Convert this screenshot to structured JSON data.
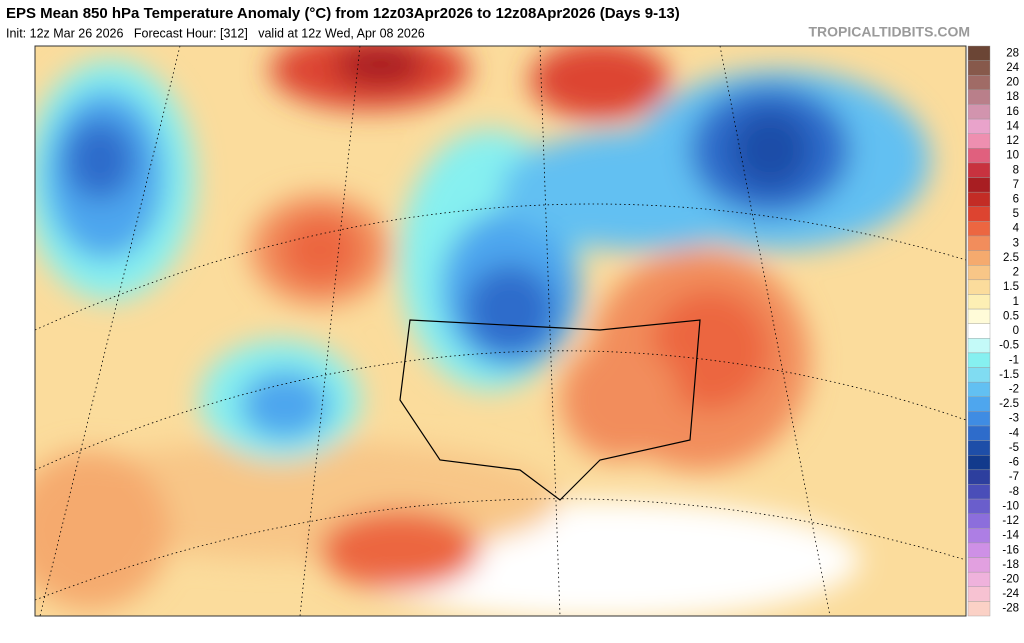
{
  "header": {
    "title": "EPS Mean 850 hPa Temperature Anomaly (°C) from 12z03Apr2026 to 12z08Apr2026 (Days 9-13)",
    "subtitle": "Init: 12z Mar 26 2026   Forecast Hour: [312]   valid at 12z Wed, Apr 08 2026",
    "source": "TROPICALTIDBITS.COM"
  },
  "legend": {
    "entries": [
      {
        "label": 28,
        "color": "#6b4535"
      },
      {
        "label": 24,
        "color": "#87594b"
      },
      {
        "label": 20,
        "color": "#a06b66"
      },
      {
        "label": 18,
        "color": "#b97f8a"
      },
      {
        "label": 16,
        "color": "#d294ae"
      },
      {
        "label": 14,
        "color": "#e9a3cb"
      },
      {
        "label": 12,
        "color": "#ee8fb0"
      },
      {
        "label": 10,
        "color": "#e0607e"
      },
      {
        "label": 8,
        "color": "#c8323f"
      },
      {
        "label": 7,
        "color": "#a81e22"
      },
      {
        "label": 6,
        "color": "#c32c25"
      },
      {
        "label": 5,
        "color": "#dd4430"
      },
      {
        "label": 4,
        "color": "#ec6641"
      },
      {
        "label": 3,
        "color": "#f28d5c"
      },
      {
        "label": 2.5,
        "color": "#f5aa6e"
      },
      {
        "label": 2,
        "color": "#f8c687"
      },
      {
        "label": 1.5,
        "color": "#fbdc9c"
      },
      {
        "label": 1,
        "color": "#fdefb4"
      },
      {
        "label": 0.5,
        "color": "#fffbd8"
      },
      {
        "label": 0,
        "color": "#ffffff"
      },
      {
        "label": -0.5,
        "color": "#c4faf8"
      },
      {
        "label": -1,
        "color": "#86f0f0"
      },
      {
        "label": -1.5,
        "color": "#80dcf2"
      },
      {
        "label": -2,
        "color": "#62c0f2"
      },
      {
        "label": -2.5,
        "color": "#4ea6ee"
      },
      {
        "label": -3,
        "color": "#3f8ce3"
      },
      {
        "label": -4,
        "color": "#2e6ccb"
      },
      {
        "label": -5,
        "color": "#1e4ea8"
      },
      {
        "label": -6,
        "color": "#123a8c"
      },
      {
        "label": -7,
        "color": "#2d3f9e"
      },
      {
        "label": -8,
        "color": "#4a4eb8"
      },
      {
        "label": -10,
        "color": "#6a5ecc"
      },
      {
        "label": -12,
        "color": "#8c6edc"
      },
      {
        "label": -14,
        "color": "#ad7ee4"
      },
      {
        "label": -16,
        "color": "#ce90e6"
      },
      {
        "label": -18,
        "color": "#e2a0e0"
      },
      {
        "label": -20,
        "color": "#efb2dc"
      },
      {
        "label": -24,
        "color": "#f7c2d2"
      },
      {
        "label": -28,
        "color": "#fbd1c6"
      }
    ]
  }
}
